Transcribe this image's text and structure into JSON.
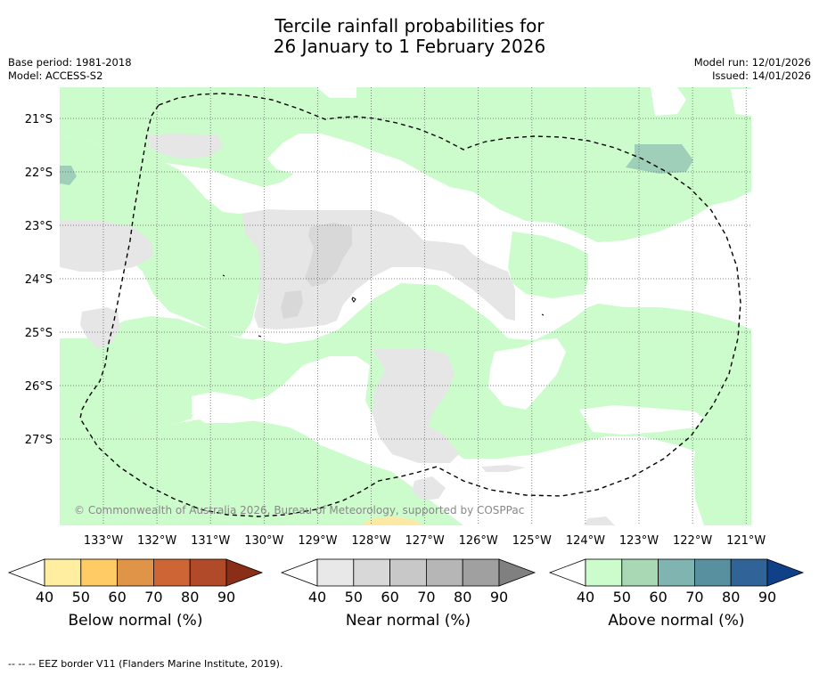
{
  "title": {
    "line1": "Tercile rainfall probabilities for",
    "line2": "26 January to 1 February 2026"
  },
  "meta_left": {
    "base_period": "Base period: 1981-2018",
    "model": "Model: ACCESS-S2"
  },
  "meta_right": {
    "model_run": "Model run: 12/01/2026",
    "issued": "Issued: 14/01/2026"
  },
  "map": {
    "lon_labels": [
      "133°W",
      "132°W",
      "131°W",
      "130°W",
      "129°W",
      "128°W",
      "127°W",
      "126°W",
      "125°W",
      "124°W",
      "123°W",
      "122°W",
      "121°W"
    ],
    "lat_labels": [
      "21°S",
      "22°S",
      "23°S",
      "24°S",
      "25°S",
      "26°S",
      "27°S"
    ],
    "copyright": "© Commonwealth of Australia 2026, Bureau of Meteorology, supported by COSPPac",
    "colors": {
      "above_normal_50": "#ccfccc",
      "above_normal_60": "#9fcfb9",
      "near_normal_50": "#e6e6e6",
      "near_normal_60": "#d8d8d8",
      "below_normal_50": "#fce9a4",
      "grid": "#555555"
    }
  },
  "legends": [
    {
      "name": "below",
      "label": "Below normal (%)",
      "ticks": [
        "40",
        "50",
        "60",
        "70",
        "80",
        "90"
      ],
      "colors": [
        "#ffffff",
        "#ffeea0",
        "#fecb64",
        "#e09448",
        "#cd6534",
        "#b04a28",
        "#8a2e18"
      ]
    },
    {
      "name": "near",
      "label": "Near normal (%)",
      "ticks": [
        "40",
        "50",
        "60",
        "70",
        "80",
        "90"
      ],
      "colors": [
        "#ffffff",
        "#e8e8e8",
        "#d8d8d8",
        "#c8c8c8",
        "#b6b6b6",
        "#a0a0a0",
        "#808080"
      ]
    },
    {
      "name": "above",
      "label": "Above normal (%)",
      "ticks": [
        "40",
        "50",
        "60",
        "70",
        "80",
        "90"
      ],
      "colors": [
        "#ffffff",
        "#ccfccc",
        "#a8d8b4",
        "#80b4b0",
        "#5890a0",
        "#306498",
        "#104088"
      ]
    }
  ],
  "footer": "--  --  -- EEZ border V11 (Flanders Marine Institute, 2019)."
}
